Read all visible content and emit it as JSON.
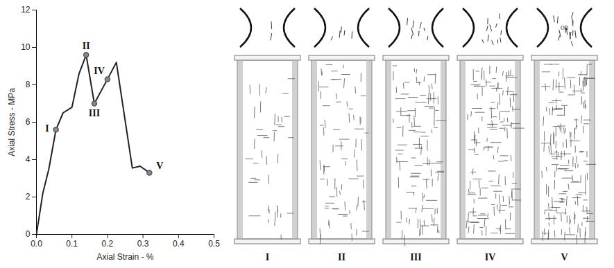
{
  "chart_data": {
    "type": "line",
    "x_label": "Axial Strain - %",
    "y_label": "Axial Stress - MPa",
    "x": [
      0,
      0.018,
      0.035,
      0.055,
      0.075,
      0.1,
      0.12,
      0.14,
      0.163,
      0.2,
      0.225,
      0.27,
      0.292,
      0.318
    ],
    "values": [
      0,
      2.2,
      3.5,
      5.6,
      6.5,
      6.8,
      8.6,
      9.6,
      7.0,
      8.3,
      9.2,
      3.55,
      3.65,
      3.3
    ],
    "color": "#222222",
    "xlim": [
      0,
      0.5
    ],
    "xticks": [
      {
        "value": 0,
        "label": "0.0"
      },
      0.1,
      0.2,
      0.3,
      0.4,
      0.5
    ],
    "ylim": [
      0,
      12
    ],
    "yticks": [
      0,
      2,
      4,
      6,
      8,
      10,
      12
    ],
    "grid": false,
    "annotations": [
      {
        "x": 0.055,
        "y": 5.6,
        "label": "I"
      },
      {
        "x": 0.14,
        "y": 9.6,
        "label": "II"
      },
      {
        "x": 0.163,
        "y": 7.0,
        "label": "III"
      },
      {
        "x": 0.2,
        "y": 8.3,
        "label": "IV"
      },
      {
        "x": 0.318,
        "y": 3.3,
        "label": "V"
      }
    ]
  },
  "crack_patterns": {
    "panels": [
      "I",
      "II",
      "III",
      "IV",
      "V"
    ],
    "inset_text": {
      "panel": "V",
      "text": "OR"
    }
  }
}
